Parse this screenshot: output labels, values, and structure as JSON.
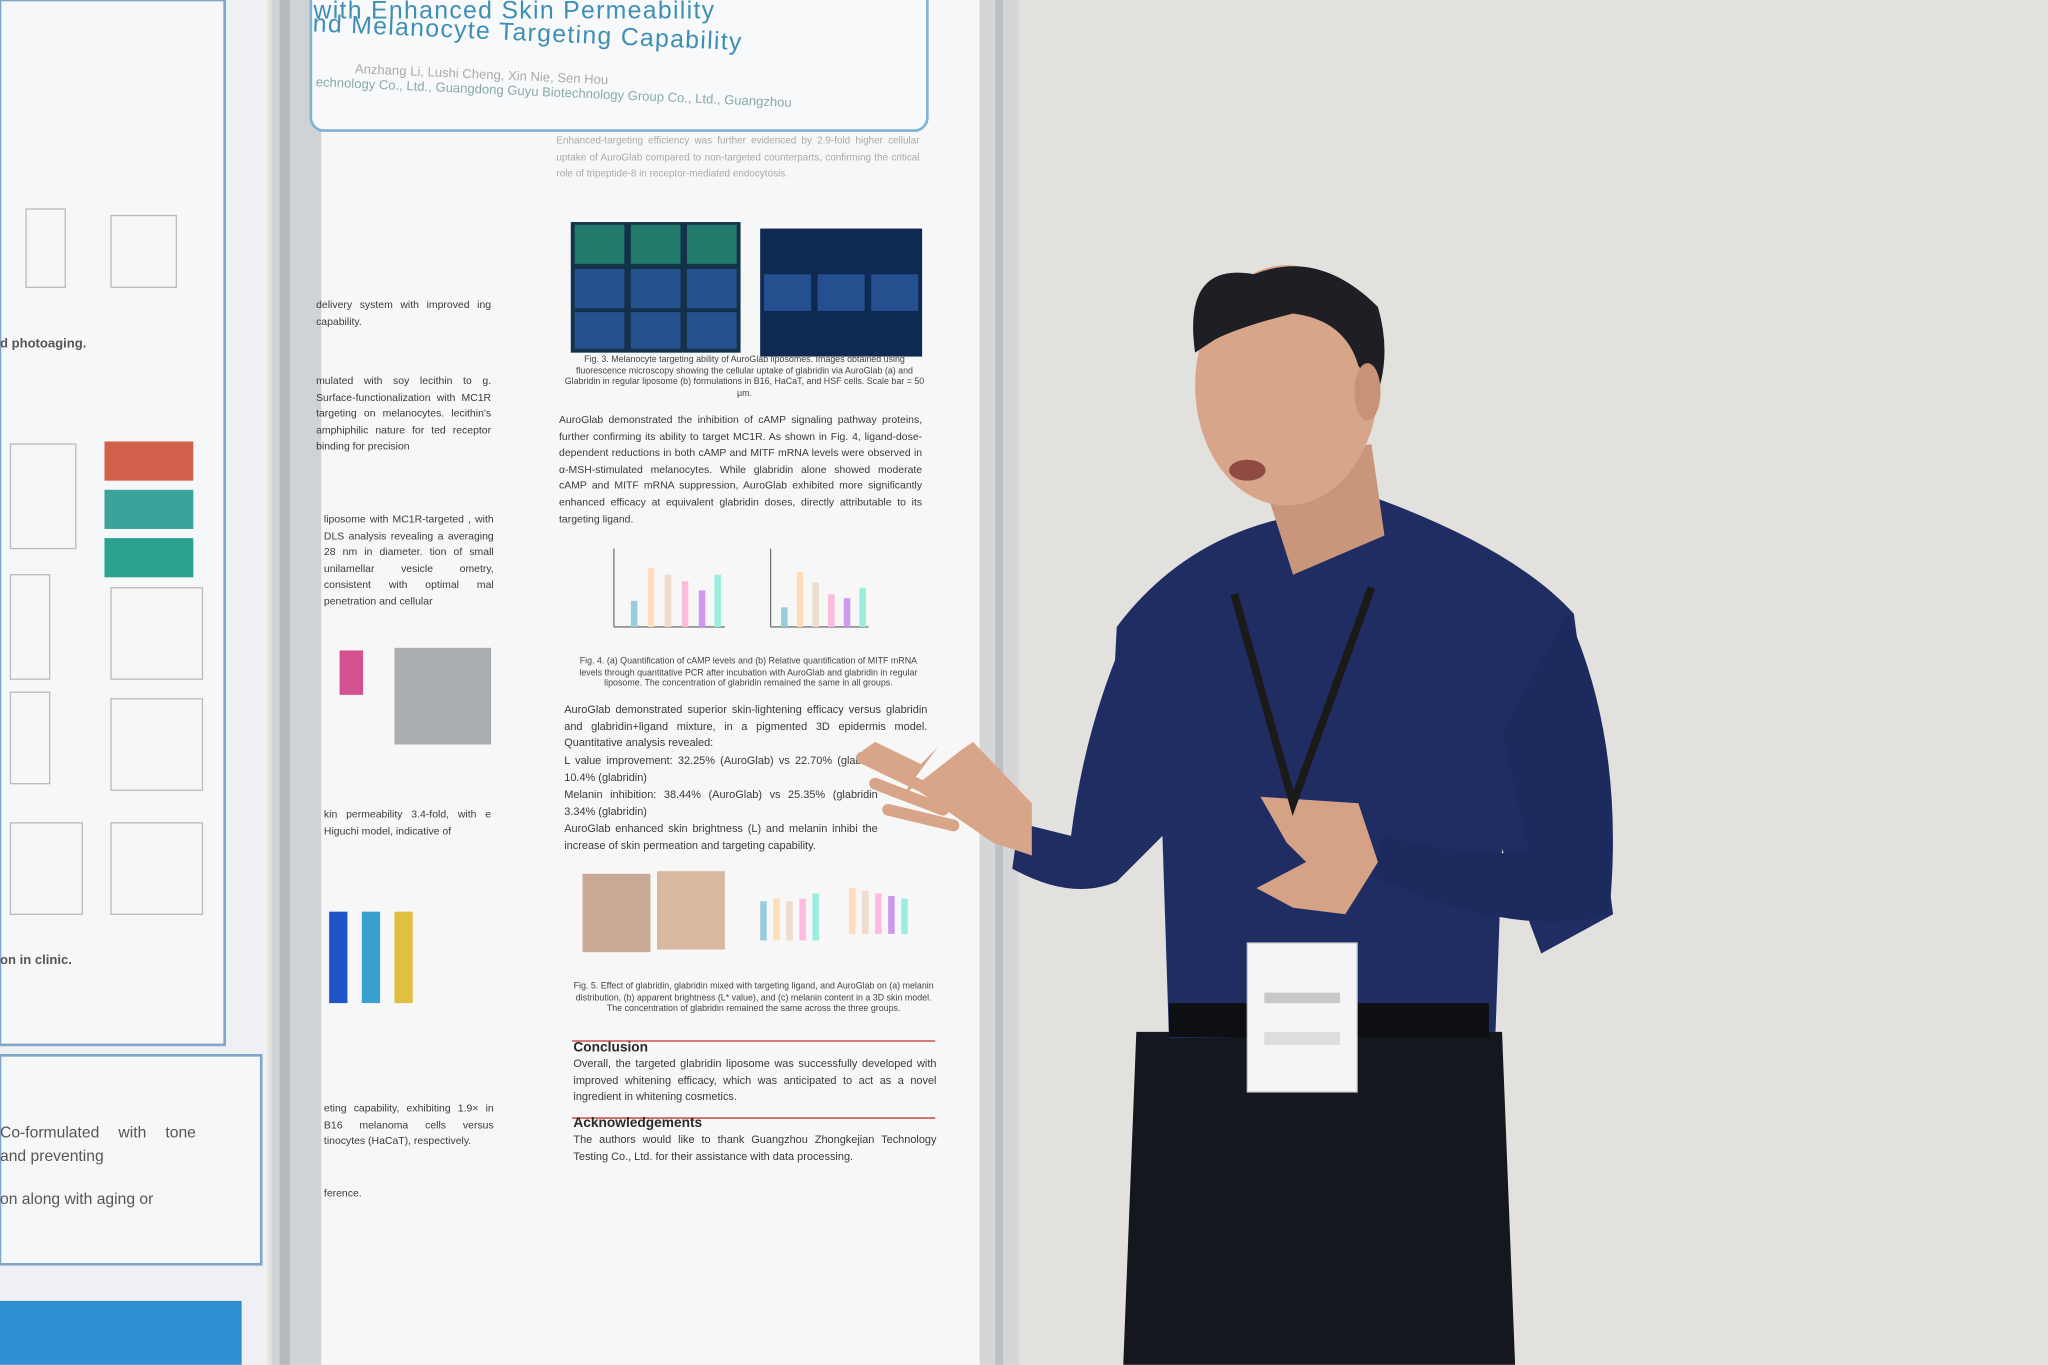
{
  "poster": {
    "title_lines": [
      "with Enhanced Skin Permeability",
      "nd Melanocyte Targeting Capability"
    ],
    "authors": "Anzhang Li, Lushi Cheng, Xin Nie, Sen Hou",
    "affiliation": "echnology Co., Ltd., Guangdong Guyu Biotechnology Group Co., Ltd., Guangzhou",
    "left_column": [
      "delivery system with improved ing capability.",
      "mulated with soy lecithin to g. Surface-functionalization with MC1R targeting on melanocytes. lecithin's amphiphilic nature for ted receptor binding for precision",
      "liposome with MC1R-targeted , with DLS analysis revealing a averaging 28 nm in diameter. tion of small unilamellar vesicle ometry, consistent with optimal mal penetration and cellular",
      "kin permeability 3.4-fold, with e Higuchi model, indicative of",
      "eting capability, exhibiting 1.9× in B16 melanoma cells versus tinocytes (HaCaT), respectively.",
      "ference."
    ],
    "paragraphs": [
      "Enhanced-targeting efficiency was further evidenced by 2.9-fold higher cellular uptake of AuroGlab compared to non-targeted counterparts, confirming the critical role of tripeptide-8 in receptor-mediated endocytosis.",
      "AuroGlab demonstrated the inhibition of cAMP signaling pathway proteins, further confirming its ability to target MC1R. As shown in Fig. 4, ligand-dose-dependent reductions in both cAMP and MITF mRNA levels were observed in α-MSH-stimulated melanocytes. While glabridin alone showed moderate cAMP and MITF mRNA suppression, AuroGlab exhibited more significantly enhanced efficacy at equivalent glabridin doses, directly attributable to its targeting ligand.",
      "AuroGlab demonstrated superior skin-lightening efficacy versus glabridin and glabridin+ligand mixture, in a pigmented 3D epidermis model. Quantitative analysis revealed:",
      "L value improvement: 32.25% (AuroGlab) vs 22.70% (glab vs 10.4% (glabridin)",
      "Melanin inhibition: 38.44% (AuroGlab) vs 25.35% (glabridin 3.34% (glabridin)",
      "AuroGlab enhanced skin brightness (L) and melanin inhibi the increase of skin permeation and targeting capability."
    ],
    "captions": [
      "Fig. 3. Melanocyte targeting ability of AuroGlab liposomes. Images obtained using fluorescence microscopy showing the cellular uptake of glabridin via AuroGlab (a) and Glabridin in regular liposome (b) formulations in B16, HaCaT, and HSF cells. Scale bar = 50 μm.",
      "Fig. 4. (a) Quantification of cAMP levels and (b) Relative quantification of MITF mRNA levels through quantitative PCR after incubation with AuroGlab and glabridin in regular liposome. The concentration of glabridin remained the same in all groups.",
      "Fig. 5. Effect of glabridin, glabridin mixed with targeting ligand, and AuroGlab on (a) melanin distribution, (b) apparent brightness (L* value), and (c) melanin content in a 3D skin model. The concentration of glabridin remained the same across the three groups."
    ],
    "conclusion": {
      "heading": "Conclusion",
      "text": "Overall, the targeted glabridin liposome was successfully developed with improved whitening efficacy, which was anticipated to act as a novel ingredient in whitening cosmetics."
    },
    "acknowledgements": {
      "heading": "Acknowledgements",
      "text": "The authors would like to thank Guangzhou Zhongkejian Technology Testing Co., Ltd. for their assistance with data processing."
    },
    "left_poster": [
      "d photoaging.",
      "on in clinic.",
      "Co-formulated with tone and preventing",
      "on along with aging or"
    ]
  }
}
